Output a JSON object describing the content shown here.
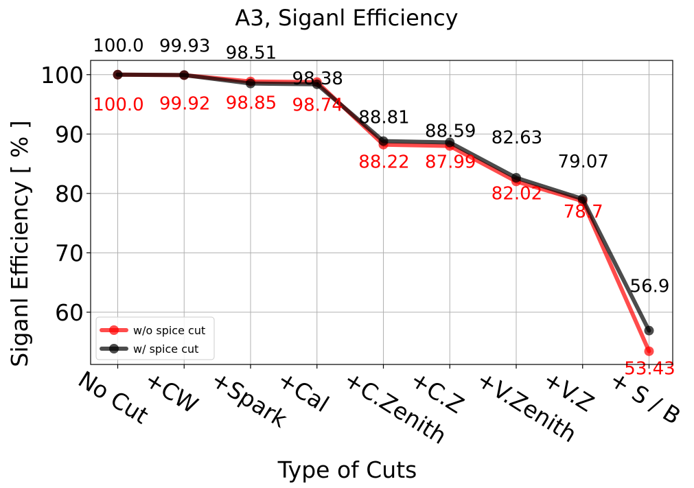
{
  "chart_data": {
    "type": "line",
    "title": "A3, Siganl Efficiency",
    "xlabel": "Type of Cuts",
    "ylabel": "Siganl Efficiency [ % ]",
    "categories": [
      "No Cut",
      "+CW",
      "+Spark",
      "+Cal",
      "+C.Zenith",
      "+C.Z",
      "+V.Zenith",
      "+V.Z",
      "+ S / B"
    ],
    "yticks": [
      "60",
      "70",
      "80",
      "90",
      "100"
    ],
    "ylim": [
      51.2,
      102.4
    ],
    "grid": true,
    "legend_position": "lower-left",
    "series": [
      {
        "name": "w/o spice cut",
        "color": "#ff0000",
        "values": [
          100.0,
          99.92,
          98.85,
          98.74,
          88.22,
          87.99,
          82.02,
          78.7,
          53.43
        ],
        "labels": [
          "100.0",
          "99.92",
          "98.85",
          "98.74",
          "88.22",
          "87.99",
          "82.02",
          "78.7",
          "53.43"
        ]
      },
      {
        "name": "w/ spice cut",
        "color": "#000000",
        "values": [
          100.0,
          99.93,
          98.51,
          98.38,
          88.81,
          88.59,
          82.63,
          79.07,
          56.9
        ],
        "labels": [
          "100.0",
          "99.93",
          "98.51",
          "98.38",
          "88.81",
          "88.59",
          "82.63",
          "79.07",
          "56.9"
        ]
      }
    ]
  }
}
